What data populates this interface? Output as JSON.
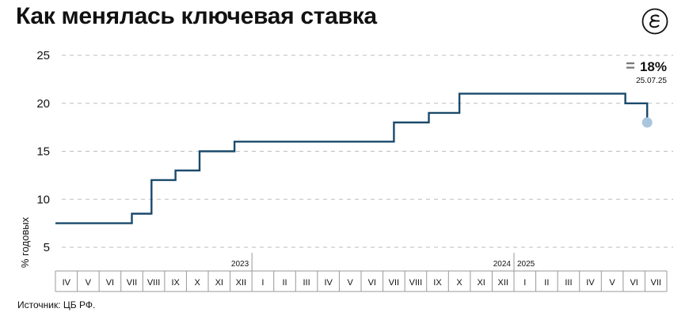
{
  "title": "Как менялась ключевая ставка",
  "source": "Источник: ЦБ РФ.",
  "logo_icon": "ved-logo-icon",
  "colors": {
    "line": "#1a4a6b",
    "grid": "#bdbdbd",
    "marker": "#a9c6de",
    "text": "#111111"
  },
  "chart_data": {
    "type": "line",
    "step": true,
    "title": "Как менялась ключевая ставка",
    "ylabel": "% годовых",
    "ylim": [
      5,
      25
    ],
    "yticks": [
      5,
      10,
      15,
      20,
      25
    ],
    "grid": true,
    "months": [
      "IV",
      "V",
      "VI",
      "VII",
      "VIII",
      "IX",
      "X",
      "XI",
      "XII",
      "I",
      "II",
      "III",
      "IV",
      "V",
      "VI",
      "VII",
      "VIII",
      "IX",
      "X",
      "XI",
      "XII",
      "I",
      "II",
      "III",
      "IV",
      "V",
      "VI",
      "VII"
    ],
    "year_labels": [
      {
        "label": "2023",
        "after_index": 8
      },
      {
        "label": "2024",
        "after_index": 20
      },
      {
        "label": "2025",
        "after_index": 20
      }
    ],
    "series": [
      {
        "points": [
          {
            "x": 0,
            "y": 7.5
          },
          {
            "x": 3.5,
            "y": 7.5
          },
          {
            "x": 3.5,
            "y": 8.5
          },
          {
            "x": 4.4,
            "y": 8.5
          },
          {
            "x": 4.4,
            "y": 12
          },
          {
            "x": 5.5,
            "y": 12
          },
          {
            "x": 5.5,
            "y": 13
          },
          {
            "x": 6.6,
            "y": 13
          },
          {
            "x": 6.6,
            "y": 15
          },
          {
            "x": 8.2,
            "y": 15
          },
          {
            "x": 8.2,
            "y": 16
          },
          {
            "x": 15.5,
            "y": 16
          },
          {
            "x": 15.5,
            "y": 18
          },
          {
            "x": 17.1,
            "y": 18
          },
          {
            "x": 17.1,
            "y": 19
          },
          {
            "x": 18.5,
            "y": 19
          },
          {
            "x": 18.5,
            "y": 21
          },
          {
            "x": 26.1,
            "y": 21
          },
          {
            "x": 26.1,
            "y": 20
          },
          {
            "x": 27.1,
            "y": 20
          },
          {
            "x": 27.1,
            "y": 18
          }
        ]
      }
    ],
    "annotation": {
      "value": "18%",
      "date": "25.07.25",
      "prefix": "="
    }
  }
}
